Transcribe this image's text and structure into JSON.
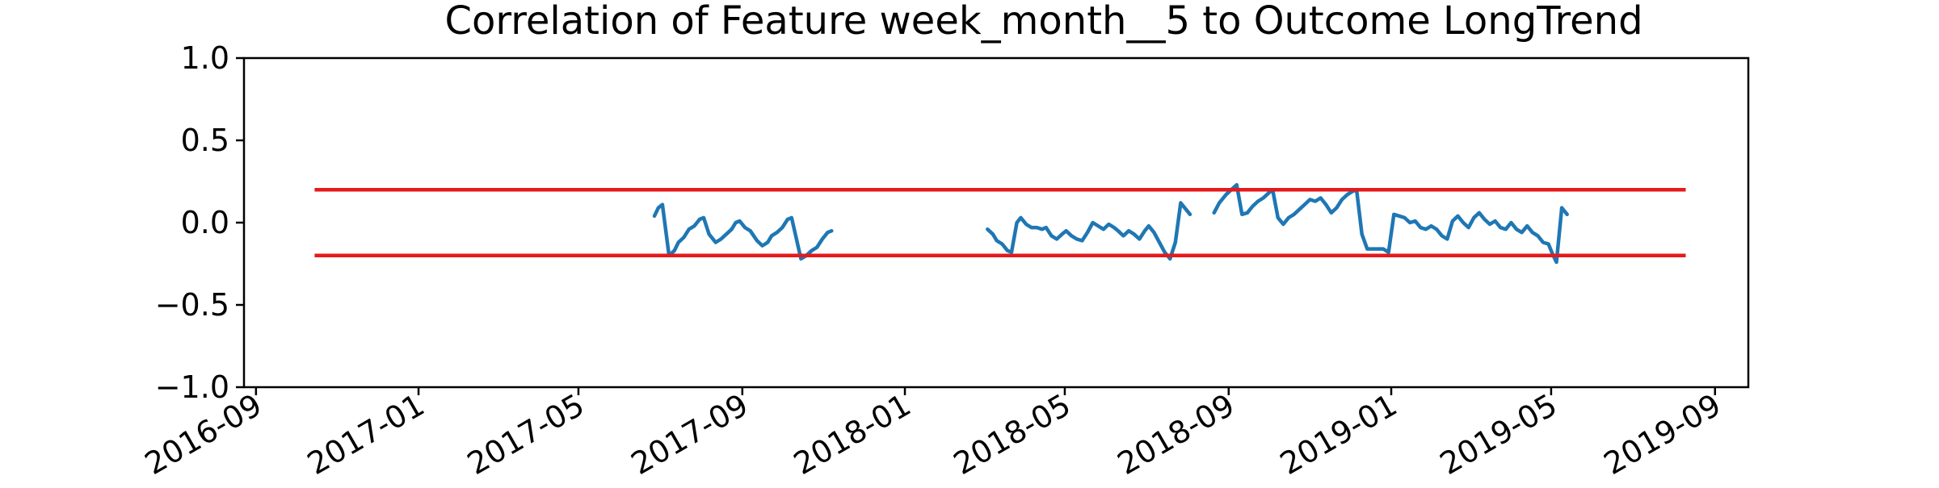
{
  "chart_data": {
    "type": "line",
    "title": "Correlation of Feature week_month__5 to Outcome LongTrend",
    "xlabel": "",
    "ylabel": "",
    "xlim": [
      "2016-08-23",
      "2019-09-26"
    ],
    "ylim": [
      -1.0,
      1.0
    ],
    "x_ticks": [
      "2016-09",
      "2017-01",
      "2017-05",
      "2017-09",
      "2018-01",
      "2018-05",
      "2018-09",
      "2019-01",
      "2019-05",
      "2019-09"
    ],
    "y_ticks": [
      "1.0",
      "0.5",
      "0.0",
      "−0.5",
      "−1.0"
    ],
    "grid": false,
    "legend": "none",
    "threshold_lines": [
      {
        "value": 0.2,
        "x_start": "2016-10-15",
        "x_end": "2019-08-10",
        "color": "#e41a1c"
      },
      {
        "value": -0.2,
        "x_start": "2016-10-15",
        "x_end": "2019-08-10",
        "color": "#e41a1c"
      }
    ],
    "series": [
      {
        "color": "#1f77b4",
        "segments": [
          [
            [
              "2017-06-27",
              0.04
            ],
            [
              "2017-06-30",
              0.09
            ],
            [
              "2017-07-03",
              0.11
            ],
            [
              "2017-07-08",
              -0.2
            ],
            [
              "2017-07-12",
              -0.17
            ],
            [
              "2017-07-15",
              -0.12
            ],
            [
              "2017-07-19",
              -0.09
            ],
            [
              "2017-07-23",
              -0.04
            ],
            [
              "2017-07-27",
              -0.02
            ],
            [
              "2017-07-31",
              0.02
            ],
            [
              "2017-08-03",
              0.03
            ],
            [
              "2017-08-07",
              -0.07
            ],
            [
              "2017-08-12",
              -0.12
            ],
            [
              "2017-08-16",
              -0.1
            ],
            [
              "2017-08-20",
              -0.07
            ],
            [
              "2017-08-24",
              -0.04
            ],
            [
              "2017-08-27",
              0.0
            ],
            [
              "2017-08-30",
              0.01
            ],
            [
              "2017-09-03",
              -0.03
            ],
            [
              "2017-09-07",
              -0.05
            ],
            [
              "2017-09-12",
              -0.11
            ],
            [
              "2017-09-16",
              -0.14
            ],
            [
              "2017-09-20",
              -0.12
            ],
            [
              "2017-09-23",
              -0.08
            ],
            [
              "2017-09-27",
              -0.06
            ],
            [
              "2017-10-01",
              -0.03
            ],
            [
              "2017-10-05",
              0.02
            ],
            [
              "2017-10-08",
              0.03
            ],
            [
              "2017-10-15",
              -0.22
            ],
            [
              "2017-10-19",
              -0.2
            ],
            [
              "2017-10-23",
              -0.17
            ],
            [
              "2017-10-27",
              -0.15
            ],
            [
              "2017-10-31",
              -0.1
            ],
            [
              "2017-11-04",
              -0.06
            ],
            [
              "2017-11-07",
              -0.05
            ]
          ],
          [
            [
              "2018-03-04",
              -0.04
            ],
            [
              "2018-03-08",
              -0.07
            ],
            [
              "2018-03-11",
              -0.11
            ],
            [
              "2018-03-15",
              -0.13
            ],
            [
              "2018-03-19",
              -0.17
            ],
            [
              "2018-03-22",
              -0.18
            ],
            [
              "2018-03-26",
              0.0
            ],
            [
              "2018-03-29",
              0.03
            ],
            [
              "2018-04-02",
              -0.01
            ],
            [
              "2018-04-06",
              -0.03
            ],
            [
              "2018-04-10",
              -0.03
            ],
            [
              "2018-04-14",
              -0.04
            ],
            [
              "2018-04-17",
              -0.03
            ],
            [
              "2018-04-21",
              -0.08
            ],
            [
              "2018-04-25",
              -0.1
            ],
            [
              "2018-04-29",
              -0.07
            ],
            [
              "2018-05-02",
              -0.05
            ],
            [
              "2018-05-06",
              -0.08
            ],
            [
              "2018-05-10",
              -0.1
            ],
            [
              "2018-05-14",
              -0.11
            ],
            [
              "2018-05-18",
              -0.06
            ],
            [
              "2018-05-22",
              0.0
            ],
            [
              "2018-05-26",
              -0.02
            ],
            [
              "2018-05-30",
              -0.04
            ],
            [
              "2018-06-03",
              -0.01
            ],
            [
              "2018-06-07",
              -0.03
            ],
            [
              "2018-06-10",
              -0.05
            ],
            [
              "2018-06-14",
              -0.08
            ],
            [
              "2018-06-18",
              -0.05
            ],
            [
              "2018-06-22",
              -0.07
            ],
            [
              "2018-06-26",
              -0.1
            ],
            [
              "2018-06-30",
              -0.05
            ],
            [
              "2018-07-03",
              -0.02
            ],
            [
              "2018-07-07",
              -0.06
            ],
            [
              "2018-07-11",
              -0.12
            ],
            [
              "2018-07-15",
              -0.18
            ],
            [
              "2018-07-19",
              -0.22
            ],
            [
              "2018-07-23",
              -0.12
            ],
            [
              "2018-07-27",
              0.12
            ],
            [
              "2018-07-31",
              0.08
            ],
            [
              "2018-08-03",
              0.05
            ]
          ],
          [
            [
              "2018-08-21",
              0.06
            ],
            [
              "2018-08-25",
              0.12
            ],
            [
              "2018-08-30",
              0.17
            ],
            [
              "2018-09-03",
              0.2
            ],
            [
              "2018-09-07",
              0.23
            ],
            [
              "2018-09-11",
              0.05
            ],
            [
              "2018-09-15",
              0.06
            ],
            [
              "2018-09-19",
              0.1
            ],
            [
              "2018-09-23",
              0.13
            ],
            [
              "2018-09-27",
              0.15
            ],
            [
              "2018-10-01",
              0.18
            ],
            [
              "2018-10-04",
              0.2
            ],
            [
              "2018-10-08",
              0.03
            ],
            [
              "2018-10-12",
              -0.01
            ],
            [
              "2018-10-16",
              0.03
            ],
            [
              "2018-10-20",
              0.05
            ],
            [
              "2018-10-24",
              0.08
            ],
            [
              "2018-10-28",
              0.11
            ],
            [
              "2018-11-01",
              0.14
            ],
            [
              "2018-11-05",
              0.13
            ],
            [
              "2018-11-09",
              0.15
            ],
            [
              "2018-11-13",
              0.11
            ],
            [
              "2018-11-17",
              0.06
            ],
            [
              "2018-11-21",
              0.09
            ],
            [
              "2018-11-25",
              0.14
            ],
            [
              "2018-11-29",
              0.17
            ],
            [
              "2018-12-03",
              0.19
            ],
            [
              "2018-12-06",
              0.2
            ],
            [
              "2018-12-10",
              -0.07
            ],
            [
              "2018-12-14",
              -0.16
            ],
            [
              "2018-12-18",
              -0.16
            ],
            [
              "2018-12-22",
              -0.16
            ],
            [
              "2018-12-26",
              -0.16
            ],
            [
              "2018-12-30",
              -0.18
            ],
            [
              "2019-01-03",
              0.05
            ],
            [
              "2019-01-07",
              0.04
            ],
            [
              "2019-01-11",
              0.03
            ],
            [
              "2019-01-15",
              0.0
            ],
            [
              "2019-01-19",
              0.01
            ],
            [
              "2019-01-23",
              -0.03
            ],
            [
              "2019-01-27",
              -0.04
            ],
            [
              "2019-01-31",
              -0.02
            ],
            [
              "2019-02-04",
              -0.04
            ],
            [
              "2019-02-08",
              -0.08
            ],
            [
              "2019-02-12",
              -0.1
            ],
            [
              "2019-02-16",
              0.01
            ],
            [
              "2019-02-20",
              0.04
            ],
            [
              "2019-02-24",
              0.0
            ],
            [
              "2019-02-28",
              -0.03
            ],
            [
              "2019-03-04",
              0.03
            ],
            [
              "2019-03-08",
              0.06
            ],
            [
              "2019-03-12",
              0.02
            ],
            [
              "2019-03-16",
              -0.01
            ],
            [
              "2019-03-20",
              0.01
            ],
            [
              "2019-03-24",
              -0.03
            ],
            [
              "2019-03-28",
              -0.04
            ],
            [
              "2019-04-01",
              0.0
            ],
            [
              "2019-04-05",
              -0.04
            ],
            [
              "2019-04-09",
              -0.06
            ],
            [
              "2019-04-13",
              -0.02
            ],
            [
              "2019-04-17",
              -0.06
            ],
            [
              "2019-04-21",
              -0.08
            ],
            [
              "2019-04-25",
              -0.12
            ],
            [
              "2019-04-29",
              -0.13
            ],
            [
              "2019-05-02",
              -0.19
            ],
            [
              "2019-05-05",
              -0.24
            ],
            [
              "2019-05-09",
              0.09
            ],
            [
              "2019-05-13",
              0.05
            ]
          ]
        ]
      }
    ]
  }
}
